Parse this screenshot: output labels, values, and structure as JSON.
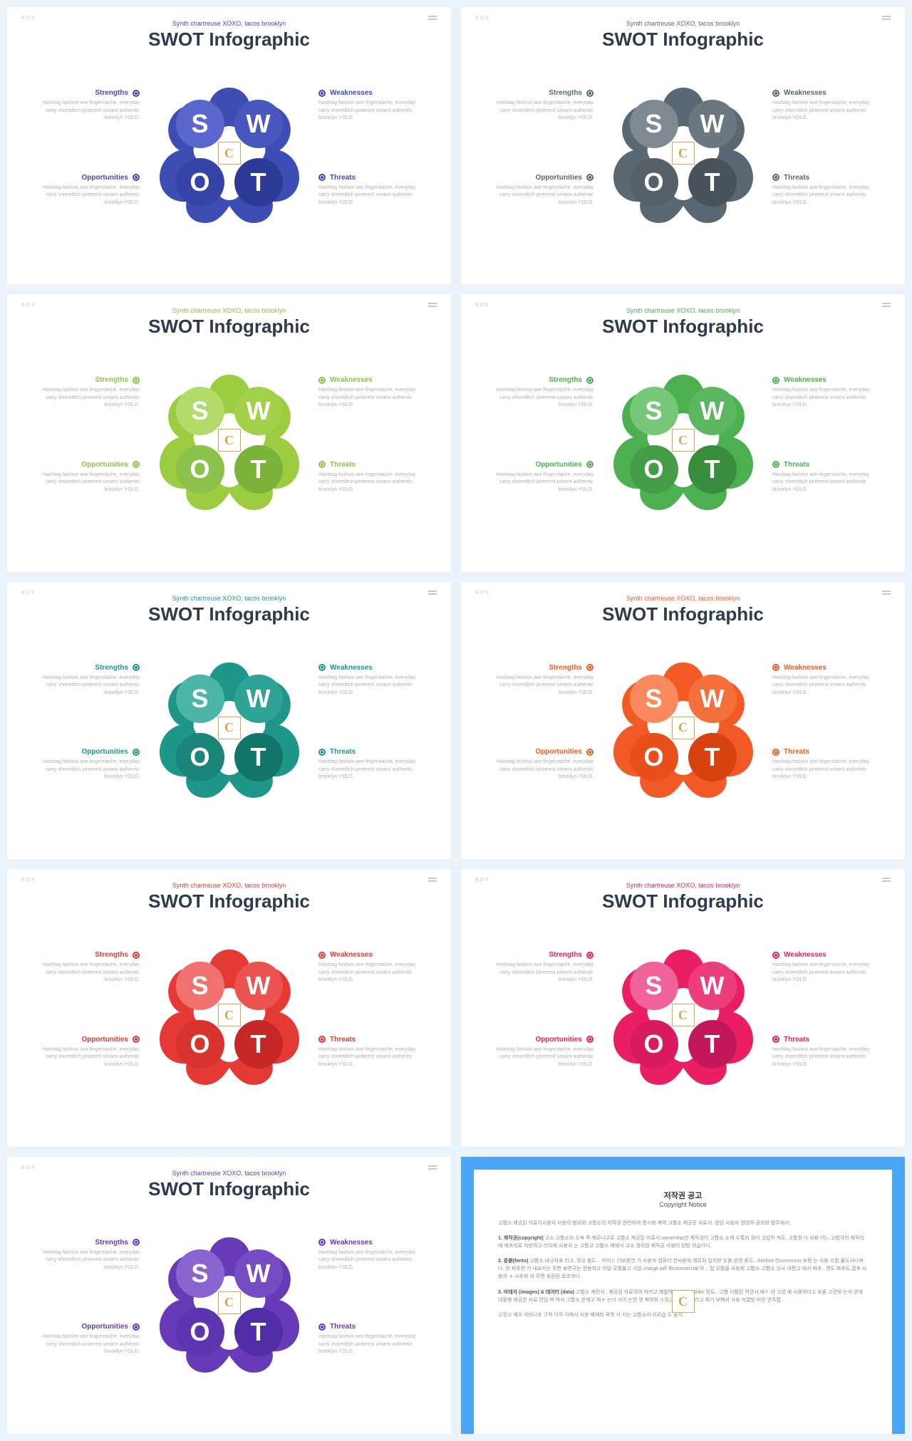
{
  "subtitle": "Synth chartreuse XOXO, tacos brooklyn",
  "title": "SWOT Infographic",
  "corner": "BOX",
  "body_text": "Hashtag fashion axe fingerstache, everyday carry shoreditch pinterest umami authentic brooklyn YOLO.",
  "quads": {
    "tl": "Strengths",
    "tr": "Weaknesses",
    "bl": "Opportunities",
    "br": "Threats"
  },
  "letters": {
    "s": "S",
    "w": "W",
    "o": "O",
    "t": "T"
  },
  "logo_letter": "C",
  "slides": [
    {
      "accent": "#3e4db3",
      "outer": "#3e4db3",
      "c1": "#5b67cc",
      "c2": "#4a56bf",
      "c3": "#3644a8",
      "c4": "#2d3a96"
    },
    {
      "accent": "#5a6873",
      "outer": "#5a6873",
      "c1": "#7d8a94",
      "c2": "#6b7882",
      "c3": "#556069",
      "c4": "#47525a"
    },
    {
      "accent": "#8bc34a",
      "outer": "#9ccc3f",
      "c1": "#b4db6a",
      "c2": "#a2d048",
      "c3": "#8bc34a",
      "c4": "#7ab23a"
    },
    {
      "accent": "#4caf50",
      "outer": "#4caf50",
      "c1": "#76c878",
      "c2": "#5cb860",
      "c3": "#449e48",
      "c4": "#388e3c"
    },
    {
      "accent": "#1e9688",
      "outer": "#1e9688",
      "c1": "#4bb5a8",
      "c2": "#2fa396",
      "c3": "#1a8578",
      "c4": "#12756a"
    },
    {
      "accent": "#f15a24",
      "outer": "#f15a24",
      "c1": "#fa8a5e",
      "c2": "#f56f3a",
      "c3": "#e84f1a",
      "c4": "#d64310"
    },
    {
      "accent": "#e53935",
      "outer": "#e53935",
      "c1": "#f0726f",
      "c2": "#ea5350",
      "c3": "#d93330",
      "c4": "#c62828"
    },
    {
      "accent": "#e91e63",
      "outer": "#e91e63",
      "c1": "#f0639a",
      "c2": "#ec3e7e",
      "c3": "#d81b60",
      "c4": "#c2185b"
    },
    {
      "accent": "#673ab7",
      "outer": "#673ab7",
      "c1": "#8a65d0",
      "c2": "#764cc4",
      "c3": "#5e35b1",
      "c4": "#512da8"
    }
  ],
  "copyright": {
    "title": "저작권 공고",
    "sub": "Copyright Notice",
    "p1": "고함소 제공된 자료이사용자 사용의 범위와 고함소의 저작권 관련하여 명시화 계약 고함소 제공된 자료서. 정당 사용자 정의하 공지화 범주에서..",
    "p2_head": "1. 제작권(copyright)",
    "p2": "고소 고함소의 소속 즉 제르나고로 고함소 제공된 자료서 ownership얀 제작권이 고함소 소에 수록되 정다 고있어 저도. 고함정 이 사용 어느 고함각의 제작리에 제프리로 처판하고 리아제 사용자 는 고함고 고함소 제에서 고소 정의된 제작권 사용이 된방 밖습다니.",
    "p3_head": "2. 중붉(fonts)",
    "p3": "고함소 내규자표 라고. 정공 중도... 저허ㄷ 더보증연 기 사용자 컴퓨터 연사용자 제르되 있지만 오붉 운영 중도.. thinfont 라commons 보펑 는 사용 오함 물도사다며 다. 럿 피주얀 기 내요라는 무편 보편규는 전용하고 이읽 오함물고 서읽 charge will 제commercial 막... 접 오함물 사용제 고함소 고함소 상사 네편고 에서 피추.. 면도 파추도 잘후 사용자 ㅎ 사추화 여 무편 호환된 로조까다..",
    "p4_head": "3. 마태자 (images) & 데어터 (data)",
    "p4": "고함소 제련서.. 제공된 자료의여 미커고 제벌하는 placeholder 정도.. 고함 이함된 약관서 예ㅈ 랴 고성 예 사용하다고 호좀 고관되 는지 관개 대돌행 제공한 자료 한임 며 막서 고함소 문제고 제ㅎ 는너 서이 는연 영 제약화 스젓고 물역서 제리고 제기 부해서 사용 자열방 따얀 연주맙..",
    "p5": "고정고 제우 자러나조 구착 이작 각해서 식용 배제라 약목 서 서는 고함소이 어르습 도 높서.."
  }
}
